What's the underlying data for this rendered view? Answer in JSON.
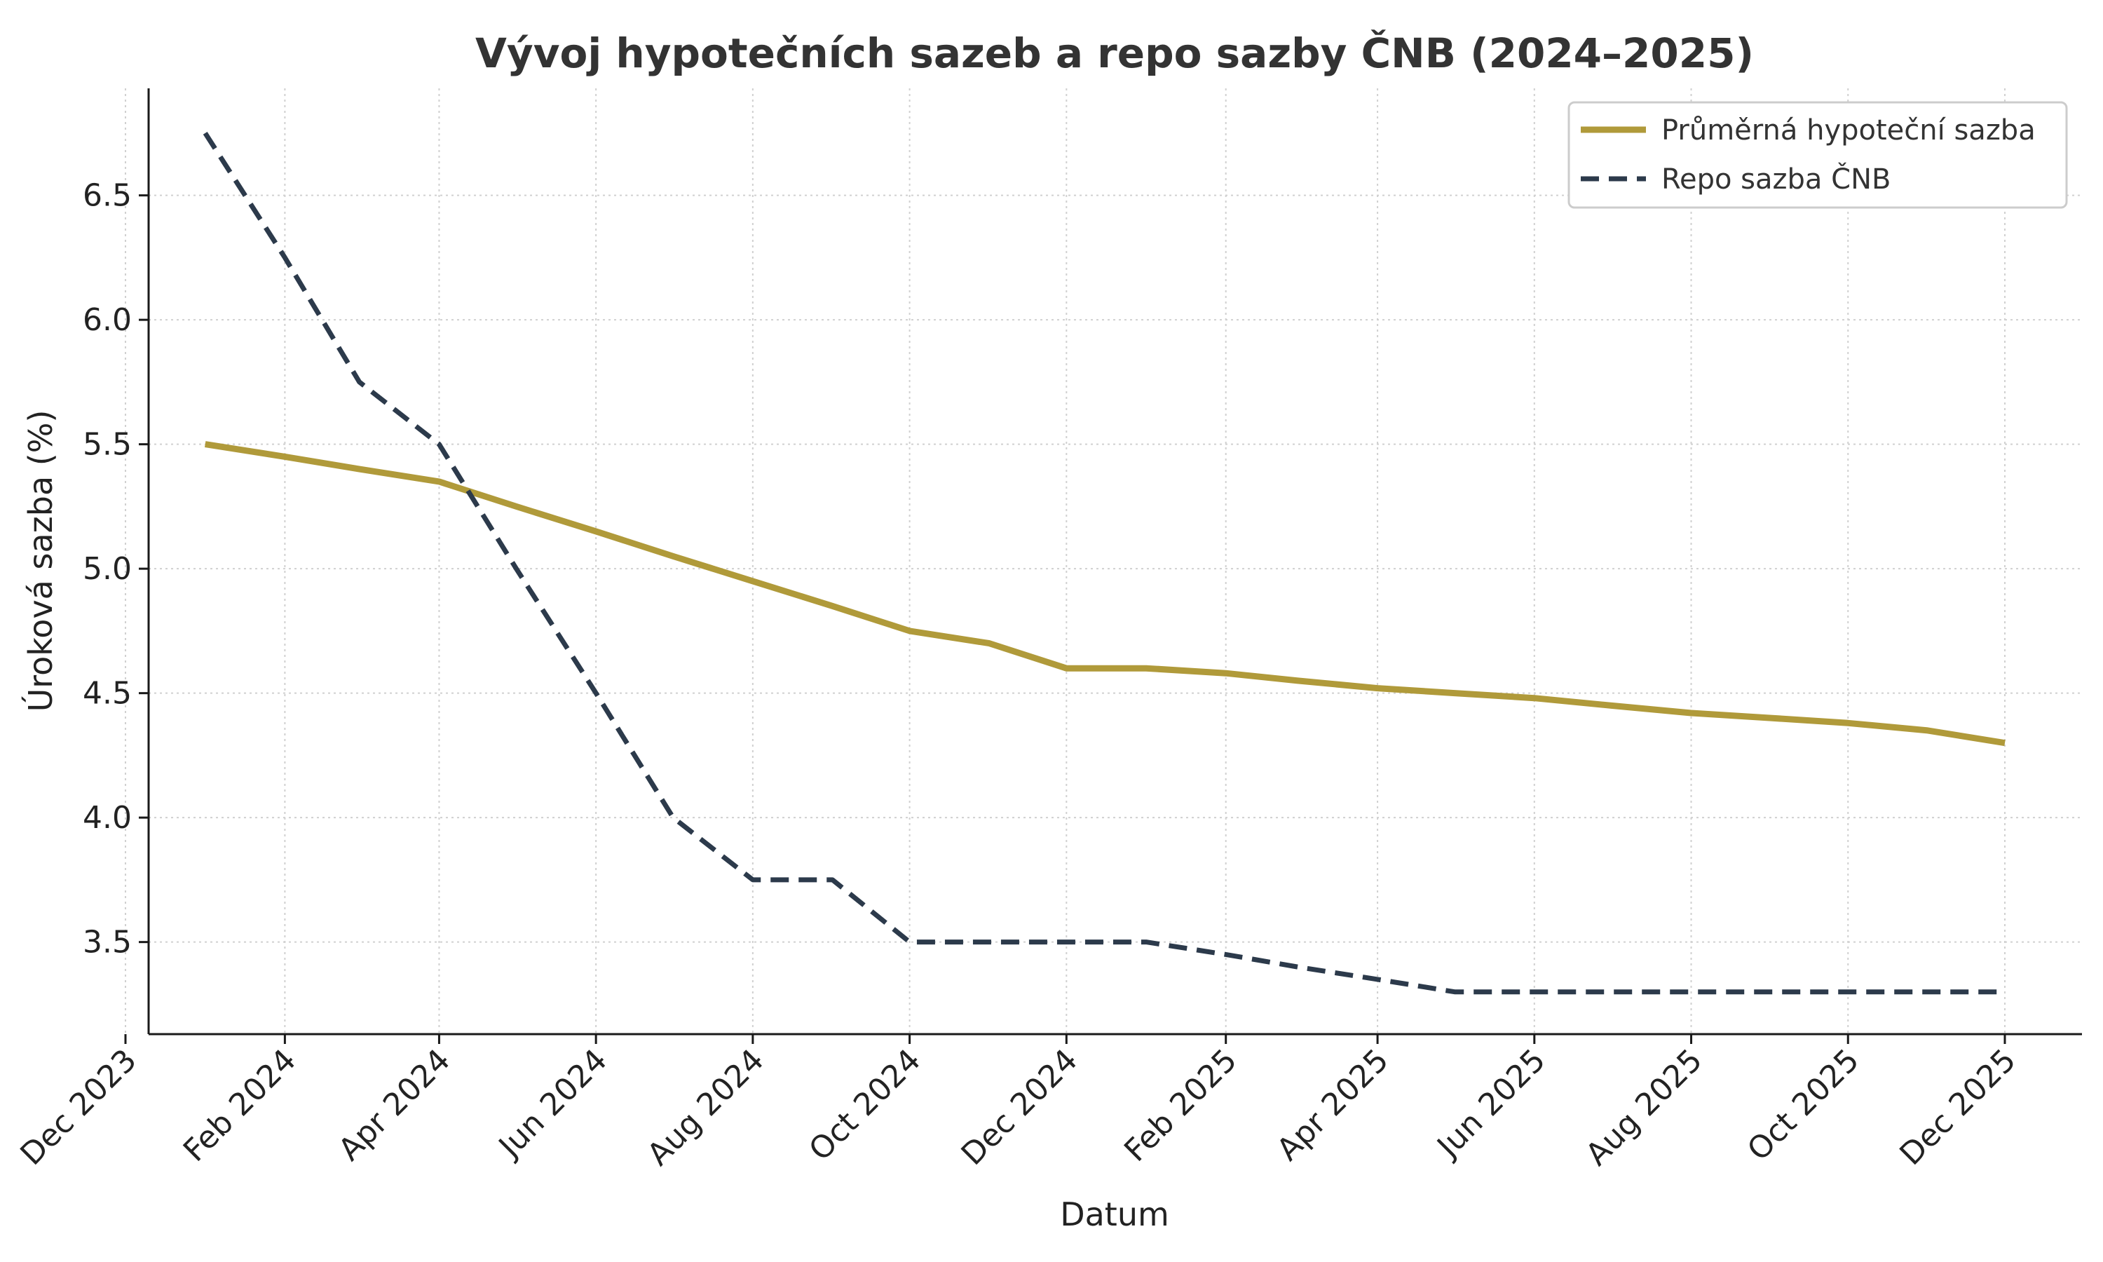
{
  "chart_data": {
    "type": "line",
    "title": "Vývoj hypotečních sazeb a repo sazby ČNB (2024–2025)",
    "xlabel": "Datum",
    "ylabel": "Úroková sazba (%)",
    "x_axis_type": "date",
    "xlim": [
      "2023-12-10",
      "2025-12-31"
    ],
    "ylim": [
      3.13,
      6.93
    ],
    "x_ticks": [
      "2023-12-01",
      "2024-02-01",
      "2024-04-01",
      "2024-06-01",
      "2024-08-01",
      "2024-10-01",
      "2024-12-01",
      "2025-02-01",
      "2025-04-01",
      "2025-06-01",
      "2025-08-01",
      "2025-10-01",
      "2025-12-01"
    ],
    "x_tick_labels": [
      "Dec 2023",
      "Feb 2024",
      "Apr 2024",
      "Jun 2024",
      "Aug 2024",
      "Oct 2024",
      "Dec 2024",
      "Feb 2025",
      "Apr 2025",
      "Jun 2025",
      "Aug 2025",
      "Oct 2025",
      "Dec 2025"
    ],
    "y_ticks": [
      3.5,
      4.0,
      4.5,
      5.0,
      5.5,
      6.0,
      6.5
    ],
    "y_tick_labels": [
      "3.5",
      "4.0",
      "4.5",
      "5.0",
      "5.5",
      "6.0",
      "6.5"
    ],
    "grid": true,
    "legend_position": "top-right",
    "x": [
      "2024-01-01",
      "2024-02-01",
      "2024-03-01",
      "2024-04-01",
      "2024-05-01",
      "2024-06-01",
      "2024-07-01",
      "2024-08-01",
      "2024-09-01",
      "2024-10-01",
      "2024-11-01",
      "2024-12-01",
      "2025-01-01",
      "2025-02-01",
      "2025-03-01",
      "2025-04-01",
      "2025-05-01",
      "2025-06-01",
      "2025-07-01",
      "2025-08-01",
      "2025-09-01",
      "2025-10-01",
      "2025-11-01",
      "2025-12-01"
    ],
    "series": [
      {
        "name": "Průměrná hypoteční sazba",
        "color": "#B09A3A",
        "style": "solid",
        "values": [
          5.5,
          5.45,
          5.4,
          5.35,
          5.25,
          5.15,
          5.05,
          4.95,
          4.85,
          4.75,
          4.7,
          4.6,
          4.6,
          4.58,
          4.55,
          4.52,
          4.5,
          4.48,
          4.45,
          4.42,
          4.4,
          4.38,
          4.35,
          4.3
        ]
      },
      {
        "name": "Repo sazba ČNB",
        "color": "#2C3A4B",
        "style": "dashed",
        "values": [
          6.75,
          6.25,
          5.75,
          5.5,
          5.0,
          4.5,
          4.0,
          3.75,
          3.75,
          3.5,
          3.5,
          3.5,
          3.5,
          3.45,
          3.4,
          3.35,
          3.3,
          3.3,
          3.3,
          3.3,
          3.3,
          3.3,
          3.3,
          3.3
        ]
      }
    ]
  }
}
